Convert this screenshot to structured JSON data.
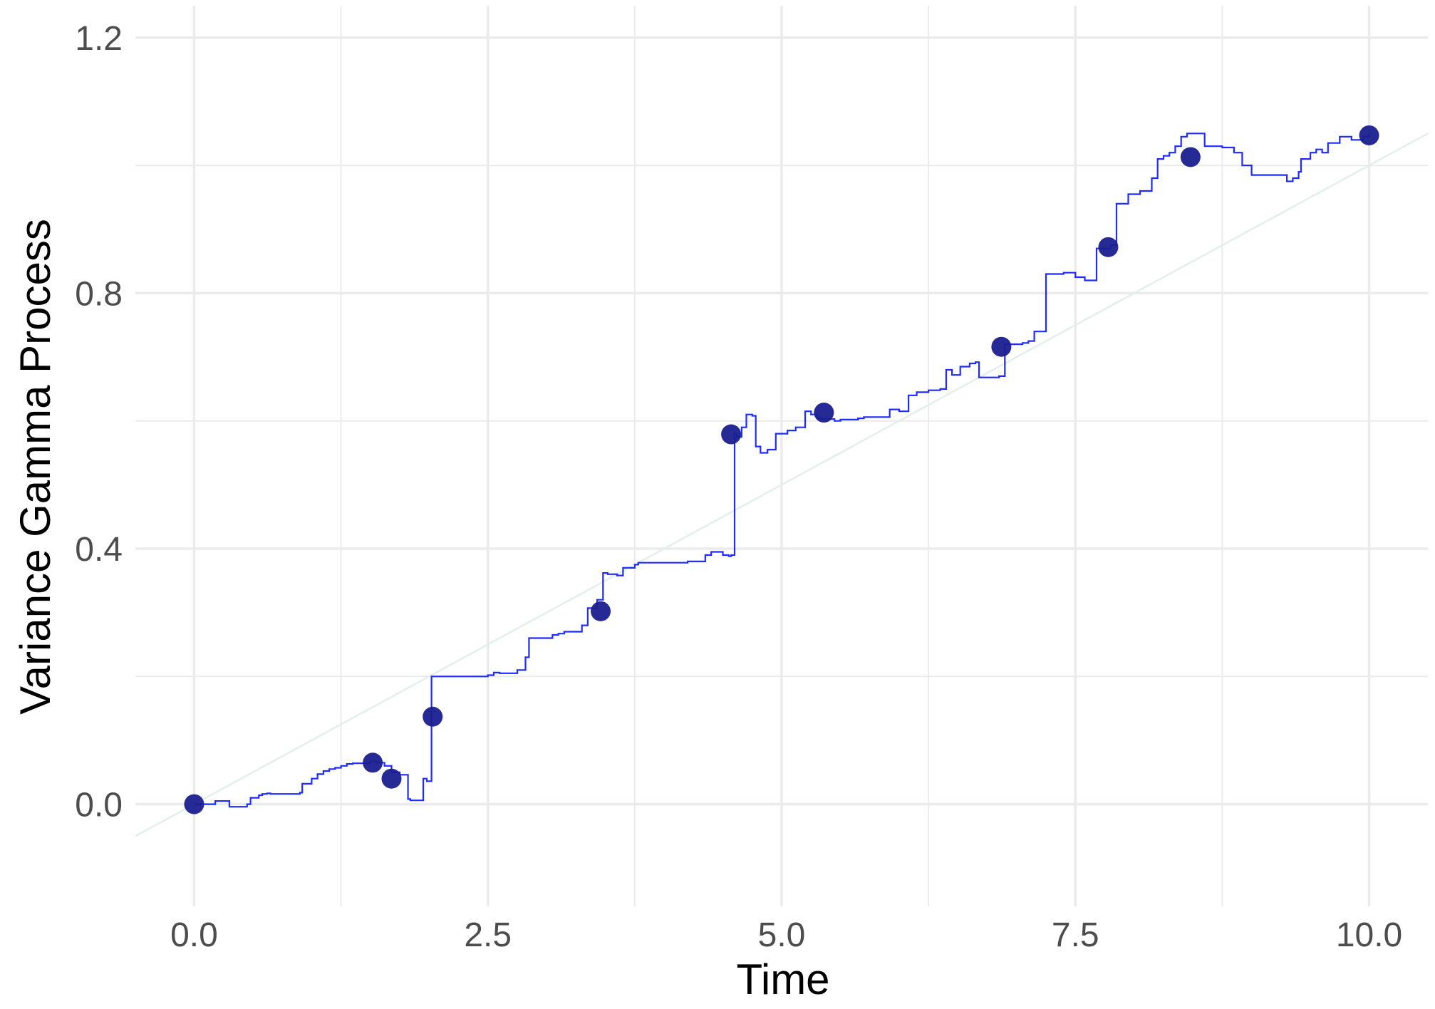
{
  "chart_data": {
    "type": "line",
    "title": "",
    "xlabel": "Time",
    "ylabel": "Variance Gamma Process",
    "xlim": [
      -0.5,
      10.5
    ],
    "ylim": [
      -0.16,
      1.25
    ],
    "x_ticks": [
      0.0,
      2.5,
      5.0,
      7.5,
      10.0
    ],
    "x_tick_labels": [
      "0.0",
      "2.5",
      "5.0",
      "7.5",
      "10.0"
    ],
    "y_ticks": [
      0.0,
      0.4,
      0.8,
      1.2
    ],
    "y_tick_labels": [
      "0.0",
      "0.4",
      "0.8",
      "1.2"
    ],
    "x_minor_ticks": [
      1.25,
      3.75,
      6.25,
      8.75
    ],
    "y_minor_ticks": [
      0.2,
      0.6,
      1.0
    ],
    "grid": true,
    "legend": "none",
    "colors": {
      "path": "#1f2bff",
      "points": "#1a1f8f",
      "trend": "#e3efec",
      "grid": "#ebebeb"
    },
    "series": [
      {
        "type": "step-line",
        "x": [
          0.0,
          0.18,
          0.3,
          0.32,
          0.42,
          0.45,
          0.48,
          0.55,
          0.58,
          0.62,
          0.65,
          0.9,
          0.92,
          1.0,
          1.05,
          1.1,
          1.15,
          1.2,
          1.25,
          1.3,
          1.35,
          1.5,
          1.55,
          1.62,
          1.68,
          1.75,
          1.82,
          1.84,
          1.92,
          1.95,
          1.98,
          2.02,
          2.05,
          2.5,
          2.55,
          2.6,
          2.75,
          2.78,
          2.82,
          2.85,
          3.05,
          3.1,
          3.15,
          3.3,
          3.35,
          3.43,
          3.48,
          3.52,
          3.6,
          3.65,
          3.75,
          3.78,
          3.95,
          4.2,
          4.35,
          4.4,
          4.5,
          4.55,
          4.57,
          4.6,
          4.62,
          4.66,
          4.7,
          4.75,
          4.78,
          4.82,
          4.88,
          4.95,
          5.05,
          5.12,
          5.2,
          5.25,
          5.3,
          5.32,
          5.45,
          5.5,
          5.65,
          5.7,
          5.8,
          5.92,
          6.0,
          6.08,
          6.15,
          6.25,
          6.35,
          6.4,
          6.45,
          6.52,
          6.6,
          6.65,
          6.68,
          6.75,
          6.85,
          6.9,
          6.95,
          7.05,
          7.1,
          7.15,
          7.25,
          7.4,
          7.5,
          7.58,
          7.62,
          7.68,
          7.8,
          7.85,
          7.95,
          8.05,
          8.15,
          8.2,
          8.25,
          8.3,
          8.35,
          8.4,
          8.45,
          8.6,
          8.75,
          8.85,
          8.92,
          9.0,
          9.3,
          9.35,
          9.4,
          9.42,
          9.5,
          9.55,
          9.6,
          9.65,
          9.75,
          9.85,
          9.95,
          10.0
        ],
        "y": [
          0.0,
          0.005,
          -0.004,
          -0.004,
          -0.004,
          0.0,
          0.01,
          0.014,
          0.016,
          0.017,
          0.016,
          0.018,
          0.032,
          0.04,
          0.047,
          0.052,
          0.055,
          0.057,
          0.06,
          0.063,
          0.064,
          0.067,
          0.065,
          0.06,
          0.05,
          0.046,
          0.008,
          0.006,
          0.006,
          0.04,
          0.036,
          0.2,
          0.2,
          0.202,
          0.206,
          0.205,
          0.21,
          0.21,
          0.23,
          0.26,
          0.265,
          0.267,
          0.27,
          0.28,
          0.307,
          0.32,
          0.362,
          0.36,
          0.358,
          0.37,
          0.375,
          0.378,
          0.378,
          0.38,
          0.39,
          0.395,
          0.39,
          0.388,
          0.39,
          0.58,
          0.575,
          0.59,
          0.61,
          0.608,
          0.56,
          0.55,
          0.555,
          0.58,
          0.585,
          0.59,
          0.615,
          0.61,
          0.606,
          0.603,
          0.6,
          0.602,
          0.604,
          0.606,
          0.606,
          0.618,
          0.615,
          0.64,
          0.645,
          0.648,
          0.65,
          0.68,
          0.672,
          0.685,
          0.69,
          0.692,
          0.668,
          0.668,
          0.67,
          0.72,
          0.72,
          0.722,
          0.725,
          0.74,
          0.83,
          0.832,
          0.825,
          0.82,
          0.82,
          0.87,
          0.875,
          0.94,
          0.955,
          0.96,
          0.98,
          1.01,
          1.015,
          1.02,
          1.03,
          1.045,
          1.05,
          1.03,
          1.028,
          1.02,
          1.0,
          0.985,
          0.975,
          0.98,
          0.99,
          1.01,
          1.02,
          1.025,
          1.02,
          1.035,
          1.045,
          1.04,
          1.045,
          1.05
        ]
      },
      {
        "type": "scatter",
        "x": [
          0.0,
          1.52,
          1.68,
          2.03,
          3.46,
          4.57,
          5.36,
          6.87,
          7.78,
          8.48,
          10.0
        ],
        "y": [
          0.0,
          0.065,
          0.04,
          0.137,
          0.302,
          0.579,
          0.613,
          0.716,
          0.872,
          1.013,
          1.047
        ]
      },
      {
        "type": "reference-line",
        "x": [
          -0.5,
          10.5
        ],
        "y": [
          -0.05,
          1.05
        ]
      }
    ]
  }
}
